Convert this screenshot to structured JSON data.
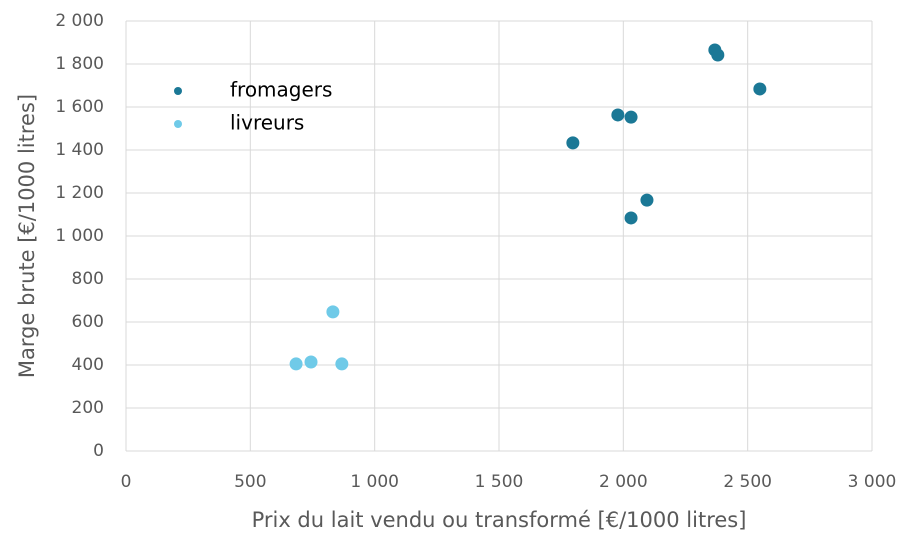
{
  "chart_data": {
    "type": "scatter",
    "xlabel": "Prix du lait vendu ou transformé [€/1000 litres]",
    "ylabel": "Marge brute [€/1000 litres]",
    "series": [
      {
        "name": "fromagers",
        "color": "#1b7896",
        "x": [
          2368,
          2380,
          2549,
          1978,
          2031,
          1797,
          2095,
          2031
        ],
        "values": [
          1865,
          1842,
          1684,
          1563,
          1553,
          1433,
          1167,
          1084
        ]
      },
      {
        "name": "livreurs",
        "color": "#6fcae8",
        "x": [
          832,
          684,
          744,
          868
        ],
        "values": [
          647,
          405,
          414,
          405
        ]
      }
    ],
    "xlim": [
      0,
      3000
    ],
    "xticks": [
      0,
      500,
      {
        "value": 1000,
        "label": "1 000"
      },
      {
        "value": 1500,
        "label": "1 500"
      },
      {
        "value": 2000,
        "label": "2 000"
      },
      {
        "value": 2500,
        "label": "2 500"
      },
      {
        "value": 3000,
        "label": "3 000"
      }
    ],
    "ylim": [
      0,
      2000
    ],
    "yticks": [
      0,
      200,
      400,
      600,
      800,
      {
        "value": 1000,
        "label": "1 000"
      },
      {
        "value": 1200,
        "label": "1 200"
      },
      {
        "value": 1400,
        "label": "1 400"
      },
      {
        "value": 1600,
        "label": "1 600"
      },
      {
        "value": 1800,
        "label": "1 800"
      },
      {
        "value": 2000,
        "label": "2 000"
      }
    ],
    "grid": true,
    "legend": "upper left"
  }
}
